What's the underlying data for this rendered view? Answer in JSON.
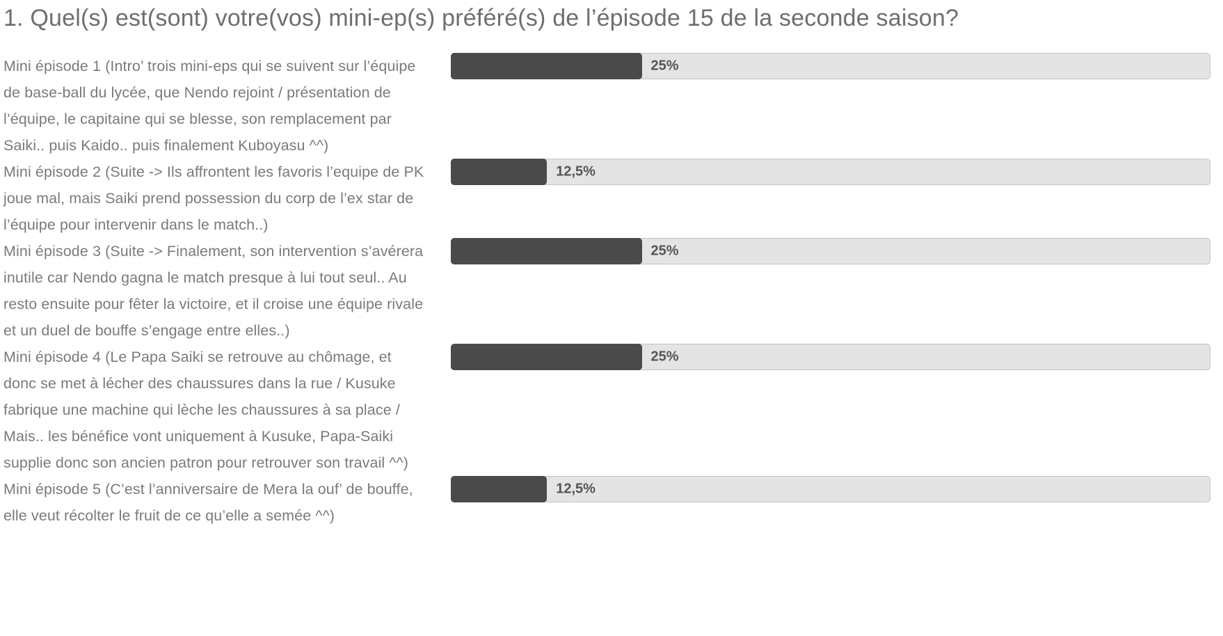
{
  "page": {
    "title": "1. Quel(s) est(sont) votre(vos) mini-ep(s) préféré(s) de l’épisode 15 de la seconde saison?"
  },
  "chart_data": {
    "type": "bar",
    "orientation": "horizontal",
    "title": "1. Quel(s) est(sont) votre(vos) mini-ep(s) préféré(s) de l’épisode 15 de la seconde saison?",
    "categories": [
      "Mini épisode 1 (Intro’ trois mini-eps qui se suivent sur l’équipe de base-ball du lycée, que Nendo rejoint / présentation de l’équipe, le capitaine qui se blesse, son remplacement par Saiki.. puis Kaido.. puis finalement Kuboyasu ^^)",
      "Mini épisode 2 (Suite -> Ils affrontent les favoris l’equipe de PK joue mal, mais Saiki prend possession du corp de l’ex star de l’équipe pour intervenir dans le match..)",
      "Mini épisode 3 (Suite -> Finalement, son intervention s’avérera inutile car Nendo gagna le match presque à lui tout seul.. Au resto ensuite pour fêter la victoire, et il croise une équipe rivale et un duel de bouffe s’engage entre elles..)",
      "Mini épisode 4 (Le Papa Saiki se retrouve au chômage, et donc se met à lécher des chaussures dans la rue / Kusuke fabrique une machine qui lèche les chaussures à sa place / Mais.. les bénéfice vont uniquement à Kusuke, Papa-Saiki supplie donc son ancien patron pour retrouver son travail ^^)",
      "Mini épisode 5 (C’est l’anniversaire de Mera la ouf’ de bouffe, elle veut récolter le fruit de ce qu’elle a semée ^^)"
    ],
    "values": [
      25,
      12.5,
      25,
      25,
      12.5
    ],
    "value_labels": [
      "25%",
      "12,5%",
      "25%",
      "25%",
      "12,5%"
    ],
    "xlim": [
      0,
      100
    ],
    "legend": false,
    "grid": false
  },
  "colors": {
    "bar_fill": "#4a4a4a",
    "bar_track": "#e4e4e4",
    "bar_border": "#c3c3c3",
    "title_text": "#6e6e6e",
    "label_text": "#7a7a7a",
    "value_text": "#555555"
  }
}
